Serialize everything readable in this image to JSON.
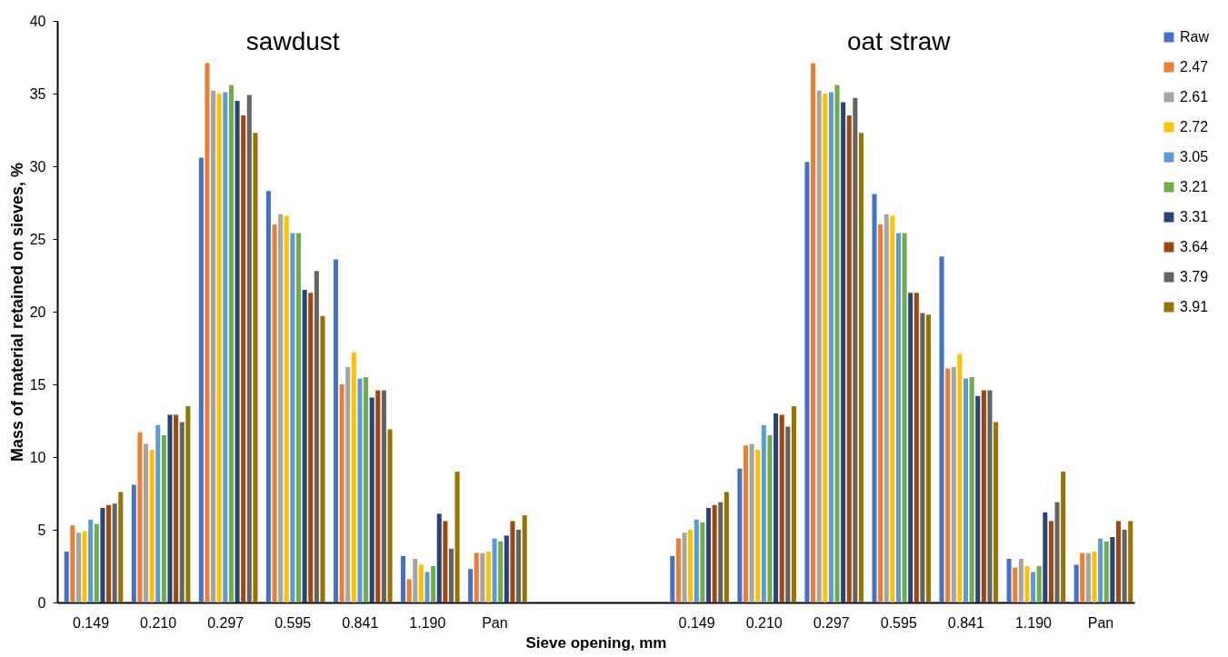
{
  "chart_data": {
    "type": "bar",
    "categories": [
      "0.149",
      "0.210",
      "0.297",
      "0.595",
      "0.841",
      "1.190",
      "Pan",
      null,
      null,
      "0.149",
      "0.210",
      "0.297",
      "0.595",
      "0.841",
      "1.190",
      "Pan"
    ],
    "xlabel": "Sieve opening, mm",
    "ylabel": "Mass of material retained on sieves, %",
    "annotations": [
      "sawdust",
      "oat straw"
    ],
    "ylim": [
      0,
      40
    ],
    "yticks": [
      0,
      5,
      10,
      15,
      20,
      25,
      30,
      35,
      40
    ],
    "grid": false,
    "legend": "right",
    "series": [
      {
        "name": "Raw",
        "color": "#4472c4",
        "values": [
          3.5,
          8.1,
          30.6,
          28.3,
          23.6,
          3.2,
          2.3,
          null,
          null,
          3.2,
          9.2,
          30.3,
          28.1,
          23.8,
          3.0,
          2.6
        ]
      },
      {
        "name": "2.47",
        "color": "#ed7d31",
        "values": [
          5.3,
          11.7,
          37.1,
          26.0,
          15.0,
          1.6,
          3.4,
          null,
          null,
          4.4,
          10.8,
          37.1,
          26.0,
          16.1,
          2.4,
          3.4
        ]
      },
      {
        "name": "2.61",
        "color": "#a5a5a5",
        "values": [
          4.8,
          10.9,
          35.2,
          26.7,
          16.2,
          3.0,
          3.4,
          null,
          null,
          4.8,
          10.9,
          35.2,
          26.7,
          16.2,
          3.0,
          3.4
        ]
      },
      {
        "name": "2.72",
        "color": "#ffc000",
        "values": [
          4.9,
          10.5,
          35.0,
          26.6,
          17.2,
          2.6,
          3.5,
          null,
          null,
          5.0,
          10.5,
          35.0,
          26.6,
          17.1,
          2.5,
          3.5
        ]
      },
      {
        "name": "3.05",
        "color": "#5b9bd5",
        "values": [
          5.7,
          12.2,
          35.1,
          25.4,
          15.4,
          2.1,
          4.4,
          null,
          null,
          5.7,
          12.2,
          35.1,
          25.4,
          15.4,
          2.1,
          4.4
        ]
      },
      {
        "name": "3.21",
        "color": "#70ad47",
        "values": [
          5.4,
          11.5,
          35.6,
          25.4,
          15.5,
          2.5,
          4.2,
          null,
          null,
          5.5,
          11.5,
          35.6,
          25.4,
          15.5,
          2.5,
          4.2
        ]
      },
      {
        "name": "3.31",
        "color": "#264478",
        "values": [
          6.5,
          12.9,
          34.5,
          21.5,
          14.1,
          6.1,
          4.6,
          null,
          null,
          6.5,
          13.0,
          34.4,
          21.3,
          14.2,
          6.2,
          4.5
        ]
      },
      {
        "name": "3.64",
        "color": "#9e480e",
        "values": [
          6.7,
          12.9,
          33.5,
          21.3,
          14.6,
          5.6,
          5.6,
          null,
          null,
          6.7,
          12.9,
          33.5,
          21.3,
          14.6,
          5.6,
          5.6
        ]
      },
      {
        "name": "3.79",
        "color": "#636363",
        "values": [
          6.8,
          12.4,
          34.9,
          22.8,
          14.6,
          3.7,
          5.0,
          null,
          null,
          6.9,
          12.1,
          34.7,
          19.9,
          14.6,
          6.9,
          5.0
        ]
      },
      {
        "name": "3.91",
        "color": "#997300",
        "values": [
          7.6,
          13.5,
          32.3,
          19.7,
          11.9,
          9.0,
          6.0,
          null,
          null,
          7.6,
          13.5,
          32.3,
          19.8,
          12.4,
          9.0,
          5.6
        ]
      }
    ]
  }
}
